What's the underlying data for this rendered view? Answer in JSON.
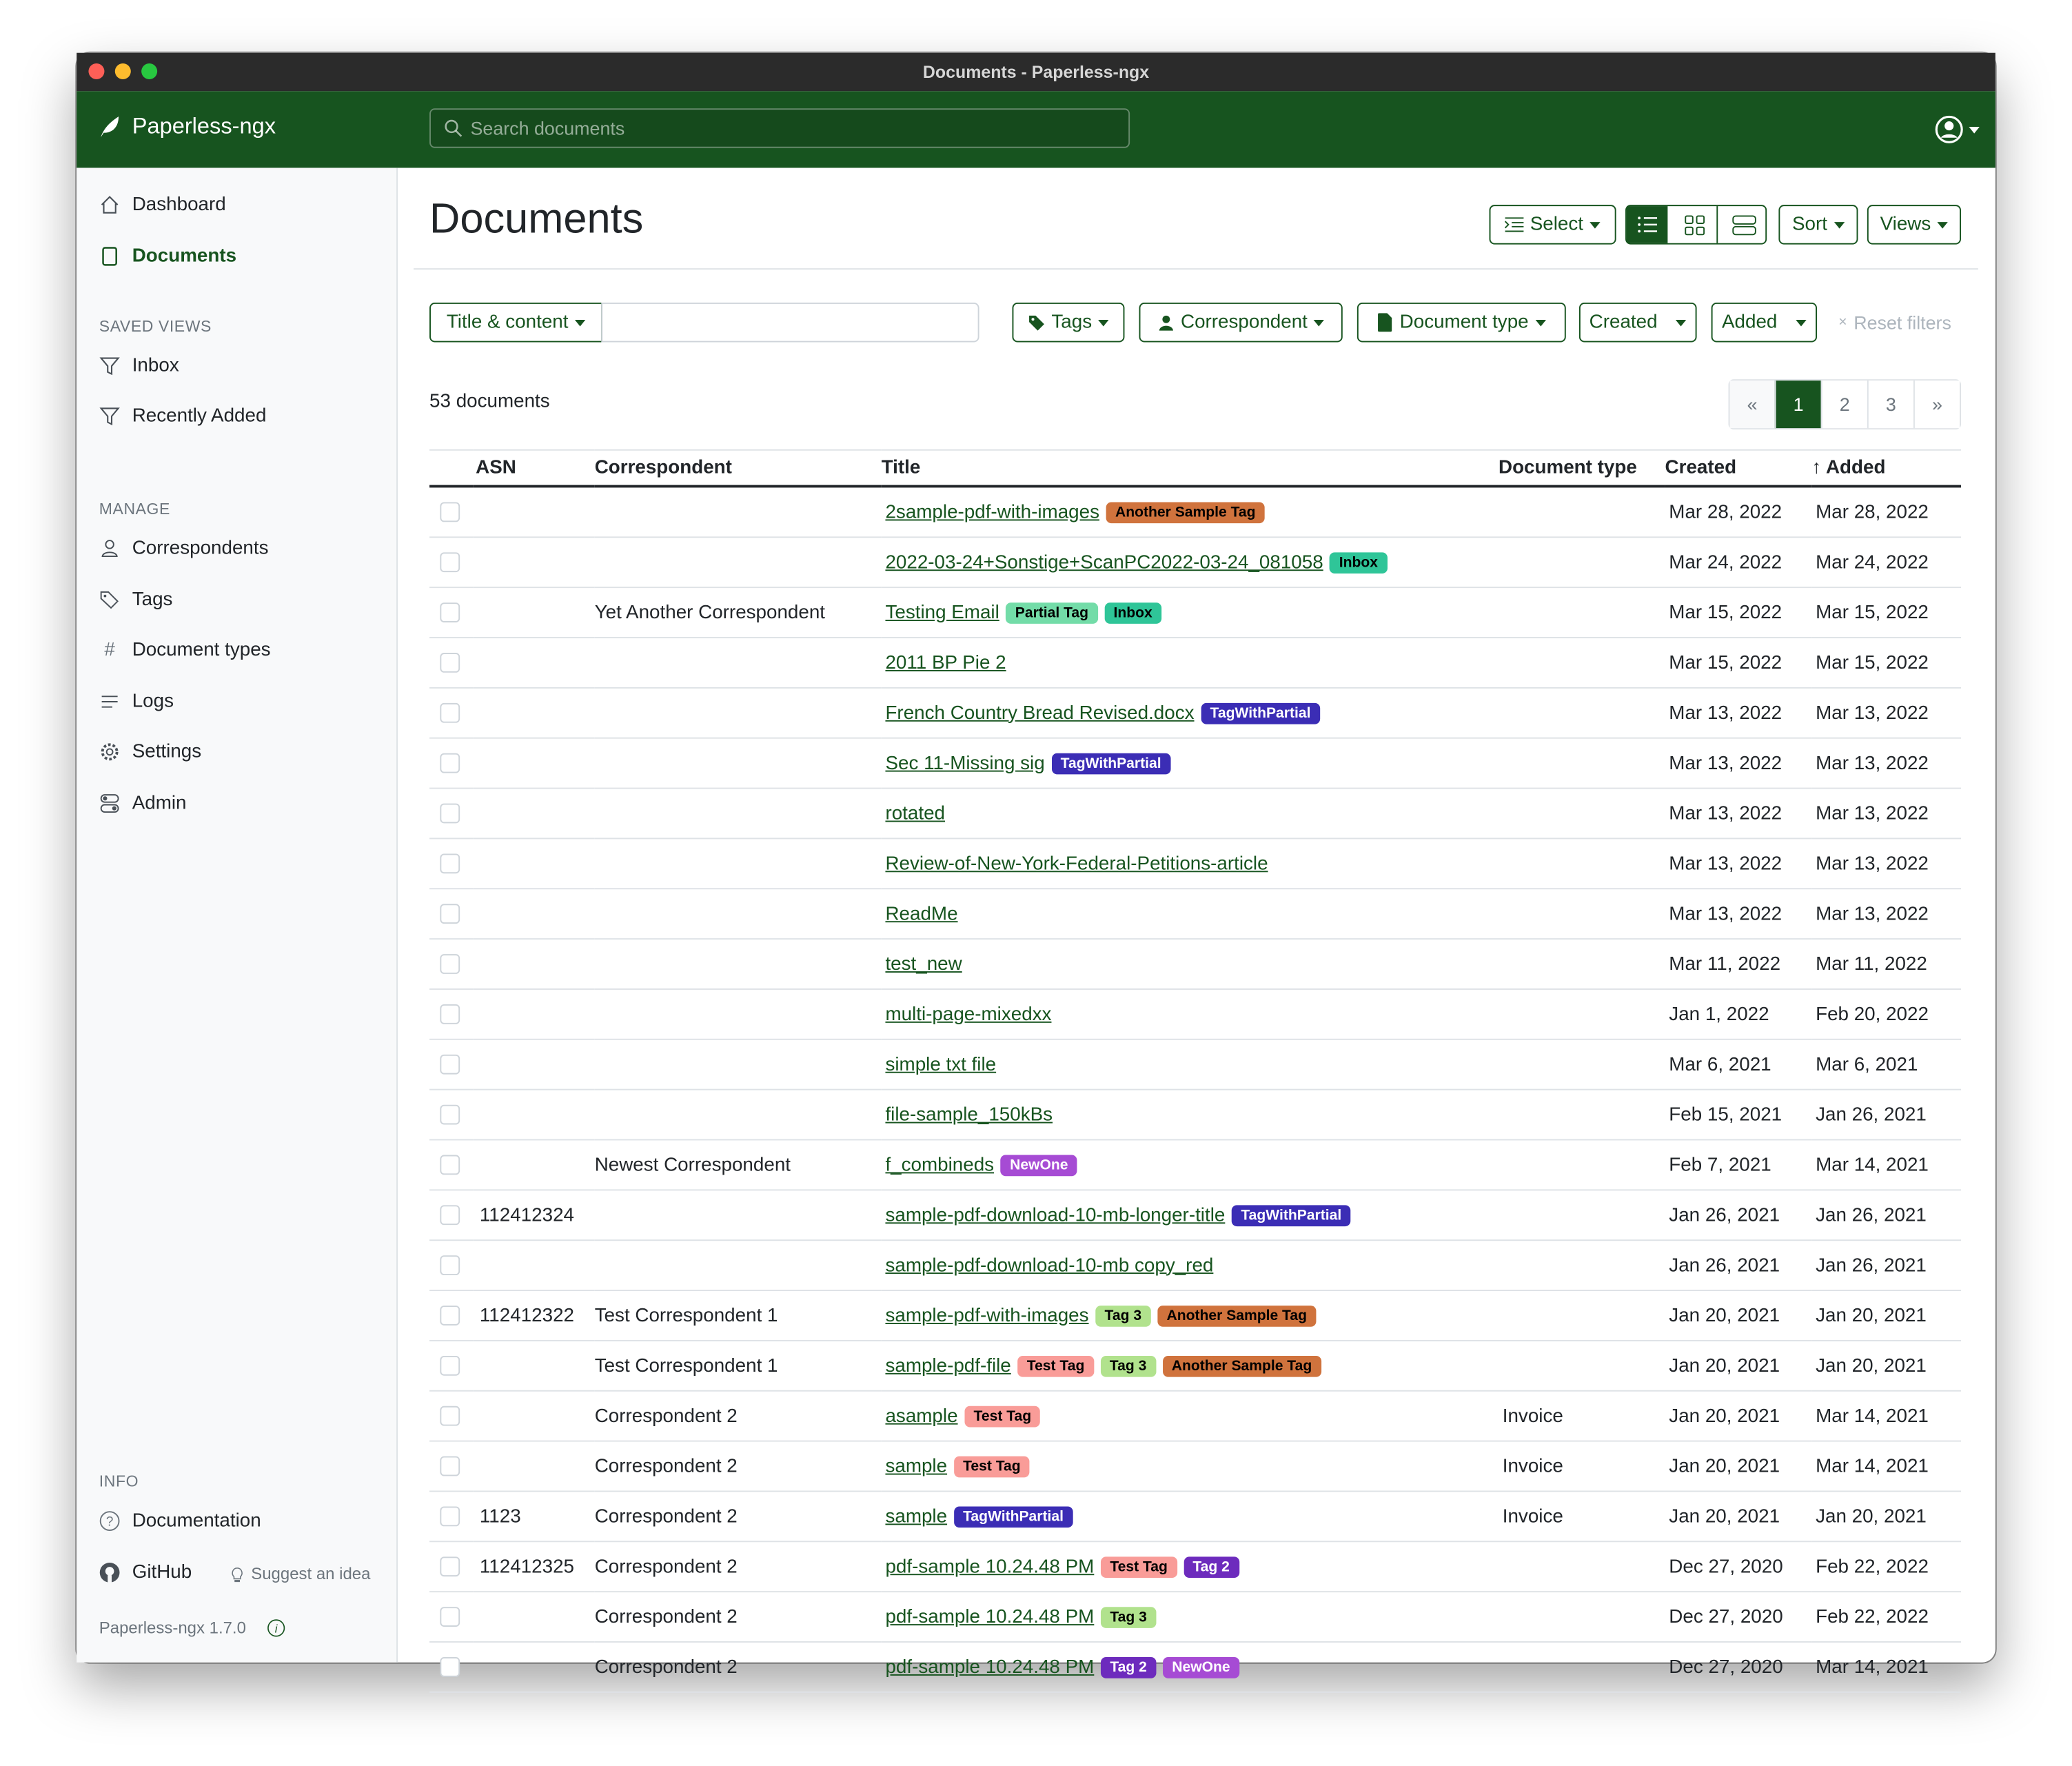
{
  "window": {
    "title": "Documents - Paperless-ngx"
  },
  "navbar": {
    "brand": "Paperless-ngx",
    "search_placeholder": "Search documents"
  },
  "sidebar": {
    "items": [
      {
        "label": "Dashboard",
        "icon": "house-icon"
      },
      {
        "label": "Documents",
        "icon": "file-icon",
        "active": true
      }
    ],
    "saved_views_heading": "SAVED VIEWS",
    "saved_views": [
      {
        "label": "Inbox",
        "icon": "funnel-icon"
      },
      {
        "label": "Recently Added",
        "icon": "funnel-icon"
      }
    ],
    "manage_heading": "MANAGE",
    "manage": [
      {
        "label": "Correspondents",
        "icon": "person-icon"
      },
      {
        "label": "Tags",
        "icon": "tags-icon"
      },
      {
        "label": "Document types",
        "icon": "hash-icon"
      },
      {
        "label": "Logs",
        "icon": "text-lines-icon"
      },
      {
        "label": "Settings",
        "icon": "gear-icon"
      },
      {
        "label": "Admin",
        "icon": "toggles-icon"
      }
    ],
    "info_heading": "INFO",
    "documentation": "Documentation",
    "github": "GitHub",
    "suggest": "Suggest an idea",
    "version": "Paperless-ngx 1.7.0"
  },
  "main": {
    "title": "Documents",
    "toolbar": {
      "select": "Select",
      "sort": "Sort",
      "views": "Views",
      "active_view": "table"
    },
    "filters": {
      "title_content": "Title & content",
      "query": "",
      "tags": "Tags",
      "correspondent": "Correspondent",
      "document_type": "Document type",
      "created": "Created",
      "added": "Added",
      "reset": "Reset filters"
    },
    "count": "53 documents",
    "pagination": {
      "prev": "«",
      "pages": [
        "1",
        "2",
        "3"
      ],
      "current": "1",
      "next": "»"
    },
    "columns": {
      "asn": "ASN",
      "correspondent": "Correspondent",
      "title": "Title",
      "document_type": "Document type",
      "created": "Created",
      "added": "Added",
      "sort_indicator": "↑"
    },
    "tag_colors": {
      "Another Sample Tag": [
        "#d0733d",
        "#000000"
      ],
      "Inbox": [
        "#2fc598",
        "#000000"
      ],
      "Partial Tag": [
        "#73dca8",
        "#000000"
      ],
      "TagWithPartial": [
        "#3b2db5",
        "#ffffff"
      ],
      "NewOne": [
        "#a64bd4",
        "#ffffff"
      ],
      "Tag 3": [
        "#b1e28d",
        "#000000"
      ],
      "Test Tag": [
        "#f99c98",
        "#000000"
      ],
      "Tag 2": [
        "#6d2bbd",
        "#ffffff"
      ]
    },
    "rows": [
      {
        "asn": "",
        "correspondent": "",
        "title": "2sample-pdf-with-images",
        "tags": [
          "Another Sample Tag"
        ],
        "type": "",
        "created": "Mar 28, 2022",
        "added": "Mar 28, 2022"
      },
      {
        "asn": "",
        "correspondent": "",
        "title": "2022-03-24+Sonstige+ScanPC2022-03-24_081058",
        "tags": [
          "Inbox"
        ],
        "type": "",
        "created": "Mar 24, 2022",
        "added": "Mar 24, 2022"
      },
      {
        "asn": "",
        "correspondent": "Yet Another Correspondent",
        "title": "Testing Email",
        "tags": [
          "Partial Tag",
          "Inbox"
        ],
        "type": "",
        "created": "Mar 15, 2022",
        "added": "Mar 15, 2022"
      },
      {
        "asn": "",
        "correspondent": "",
        "title": "2011 BP Pie 2",
        "tags": [],
        "type": "",
        "created": "Mar 15, 2022",
        "added": "Mar 15, 2022"
      },
      {
        "asn": "",
        "correspondent": "",
        "title": "French Country Bread Revised.docx",
        "tags": [
          "TagWithPartial"
        ],
        "type": "",
        "created": "Mar 13, 2022",
        "added": "Mar 13, 2022"
      },
      {
        "asn": "",
        "correspondent": "",
        "title": "Sec 11-Missing sig",
        "tags": [
          "TagWithPartial"
        ],
        "type": "",
        "created": "Mar 13, 2022",
        "added": "Mar 13, 2022"
      },
      {
        "asn": "",
        "correspondent": "",
        "title": "rotated",
        "tags": [],
        "type": "",
        "created": "Mar 13, 2022",
        "added": "Mar 13, 2022"
      },
      {
        "asn": "",
        "correspondent": "",
        "title": "Review-of-New-York-Federal-Petitions-article",
        "tags": [],
        "type": "",
        "created": "Mar 13, 2022",
        "added": "Mar 13, 2022"
      },
      {
        "asn": "",
        "correspondent": "",
        "title": "ReadMe",
        "tags": [],
        "type": "",
        "created": "Mar 13, 2022",
        "added": "Mar 13, 2022"
      },
      {
        "asn": "",
        "correspondent": "",
        "title": "test_new",
        "tags": [],
        "type": "",
        "created": "Mar 11, 2022",
        "added": "Mar 11, 2022"
      },
      {
        "asn": "",
        "correspondent": "",
        "title": "multi-page-mixedxx",
        "tags": [],
        "type": "",
        "created": "Jan 1, 2022",
        "added": "Feb 20, 2022"
      },
      {
        "asn": "",
        "correspondent": "",
        "title": "simple txt file",
        "tags": [],
        "type": "",
        "created": "Mar 6, 2021",
        "added": "Mar 6, 2021"
      },
      {
        "asn": "",
        "correspondent": "",
        "title": "file-sample_150kBs",
        "tags": [],
        "type": "",
        "created": "Feb 15, 2021",
        "added": "Jan 26, 2021"
      },
      {
        "asn": "",
        "correspondent": "Newest Correspondent",
        "title": "f_combineds",
        "tags": [
          "NewOne"
        ],
        "type": "",
        "created": "Feb 7, 2021",
        "added": "Mar 14, 2021"
      },
      {
        "asn": "112412324",
        "correspondent": "",
        "title": "sample-pdf-download-10-mb-longer-title",
        "tags": [
          "TagWithPartial"
        ],
        "type": "",
        "created": "Jan 26, 2021",
        "added": "Jan 26, 2021"
      },
      {
        "asn": "",
        "correspondent": "",
        "title": "sample-pdf-download-10-mb copy_red",
        "tags": [],
        "type": "",
        "created": "Jan 26, 2021",
        "added": "Jan 26, 2021"
      },
      {
        "asn": "112412322",
        "correspondent": "Test Correspondent 1",
        "title": "sample-pdf-with-images",
        "tags": [
          "Tag 3",
          "Another Sample Tag"
        ],
        "type": "",
        "created": "Jan 20, 2021",
        "added": "Jan 20, 2021"
      },
      {
        "asn": "",
        "correspondent": "Test Correspondent 1",
        "title": "sample-pdf-file",
        "tags": [
          "Test Tag",
          "Tag 3",
          "Another Sample Tag"
        ],
        "type": "",
        "created": "Jan 20, 2021",
        "added": "Jan 20, 2021"
      },
      {
        "asn": "",
        "correspondent": "Correspondent 2",
        "title": "asample",
        "tags": [
          "Test Tag"
        ],
        "type": "Invoice",
        "created": "Jan 20, 2021",
        "added": "Mar 14, 2021"
      },
      {
        "asn": "",
        "correspondent": "Correspondent 2",
        "title": "sample",
        "tags": [
          "Test Tag"
        ],
        "type": "Invoice",
        "created": "Jan 20, 2021",
        "added": "Mar 14, 2021"
      },
      {
        "asn": "1123",
        "correspondent": "Correspondent 2",
        "title": "sample",
        "tags": [
          "TagWithPartial"
        ],
        "type": "Invoice",
        "created": "Jan 20, 2021",
        "added": "Jan 20, 2021"
      },
      {
        "asn": "112412325",
        "correspondent": "Correspondent 2",
        "title": "pdf-sample 10.24.48 PM",
        "tags": [
          "Test Tag",
          "Tag 2"
        ],
        "type": "",
        "created": "Dec 27, 2020",
        "added": "Feb 22, 2022"
      },
      {
        "asn": "",
        "correspondent": "Correspondent 2",
        "title": "pdf-sample 10.24.48 PM",
        "tags": [
          "Tag 3"
        ],
        "type": "",
        "created": "Dec 27, 2020",
        "added": "Feb 22, 2022"
      },
      {
        "asn": "",
        "correspondent": "Correspondent 2",
        "title": "pdf-sample 10.24.48 PM",
        "tags": [
          "Tag 2",
          "NewOne"
        ],
        "type": "",
        "created": "Dec 27, 2020",
        "added": "Mar 14, 2021"
      }
    ]
  }
}
